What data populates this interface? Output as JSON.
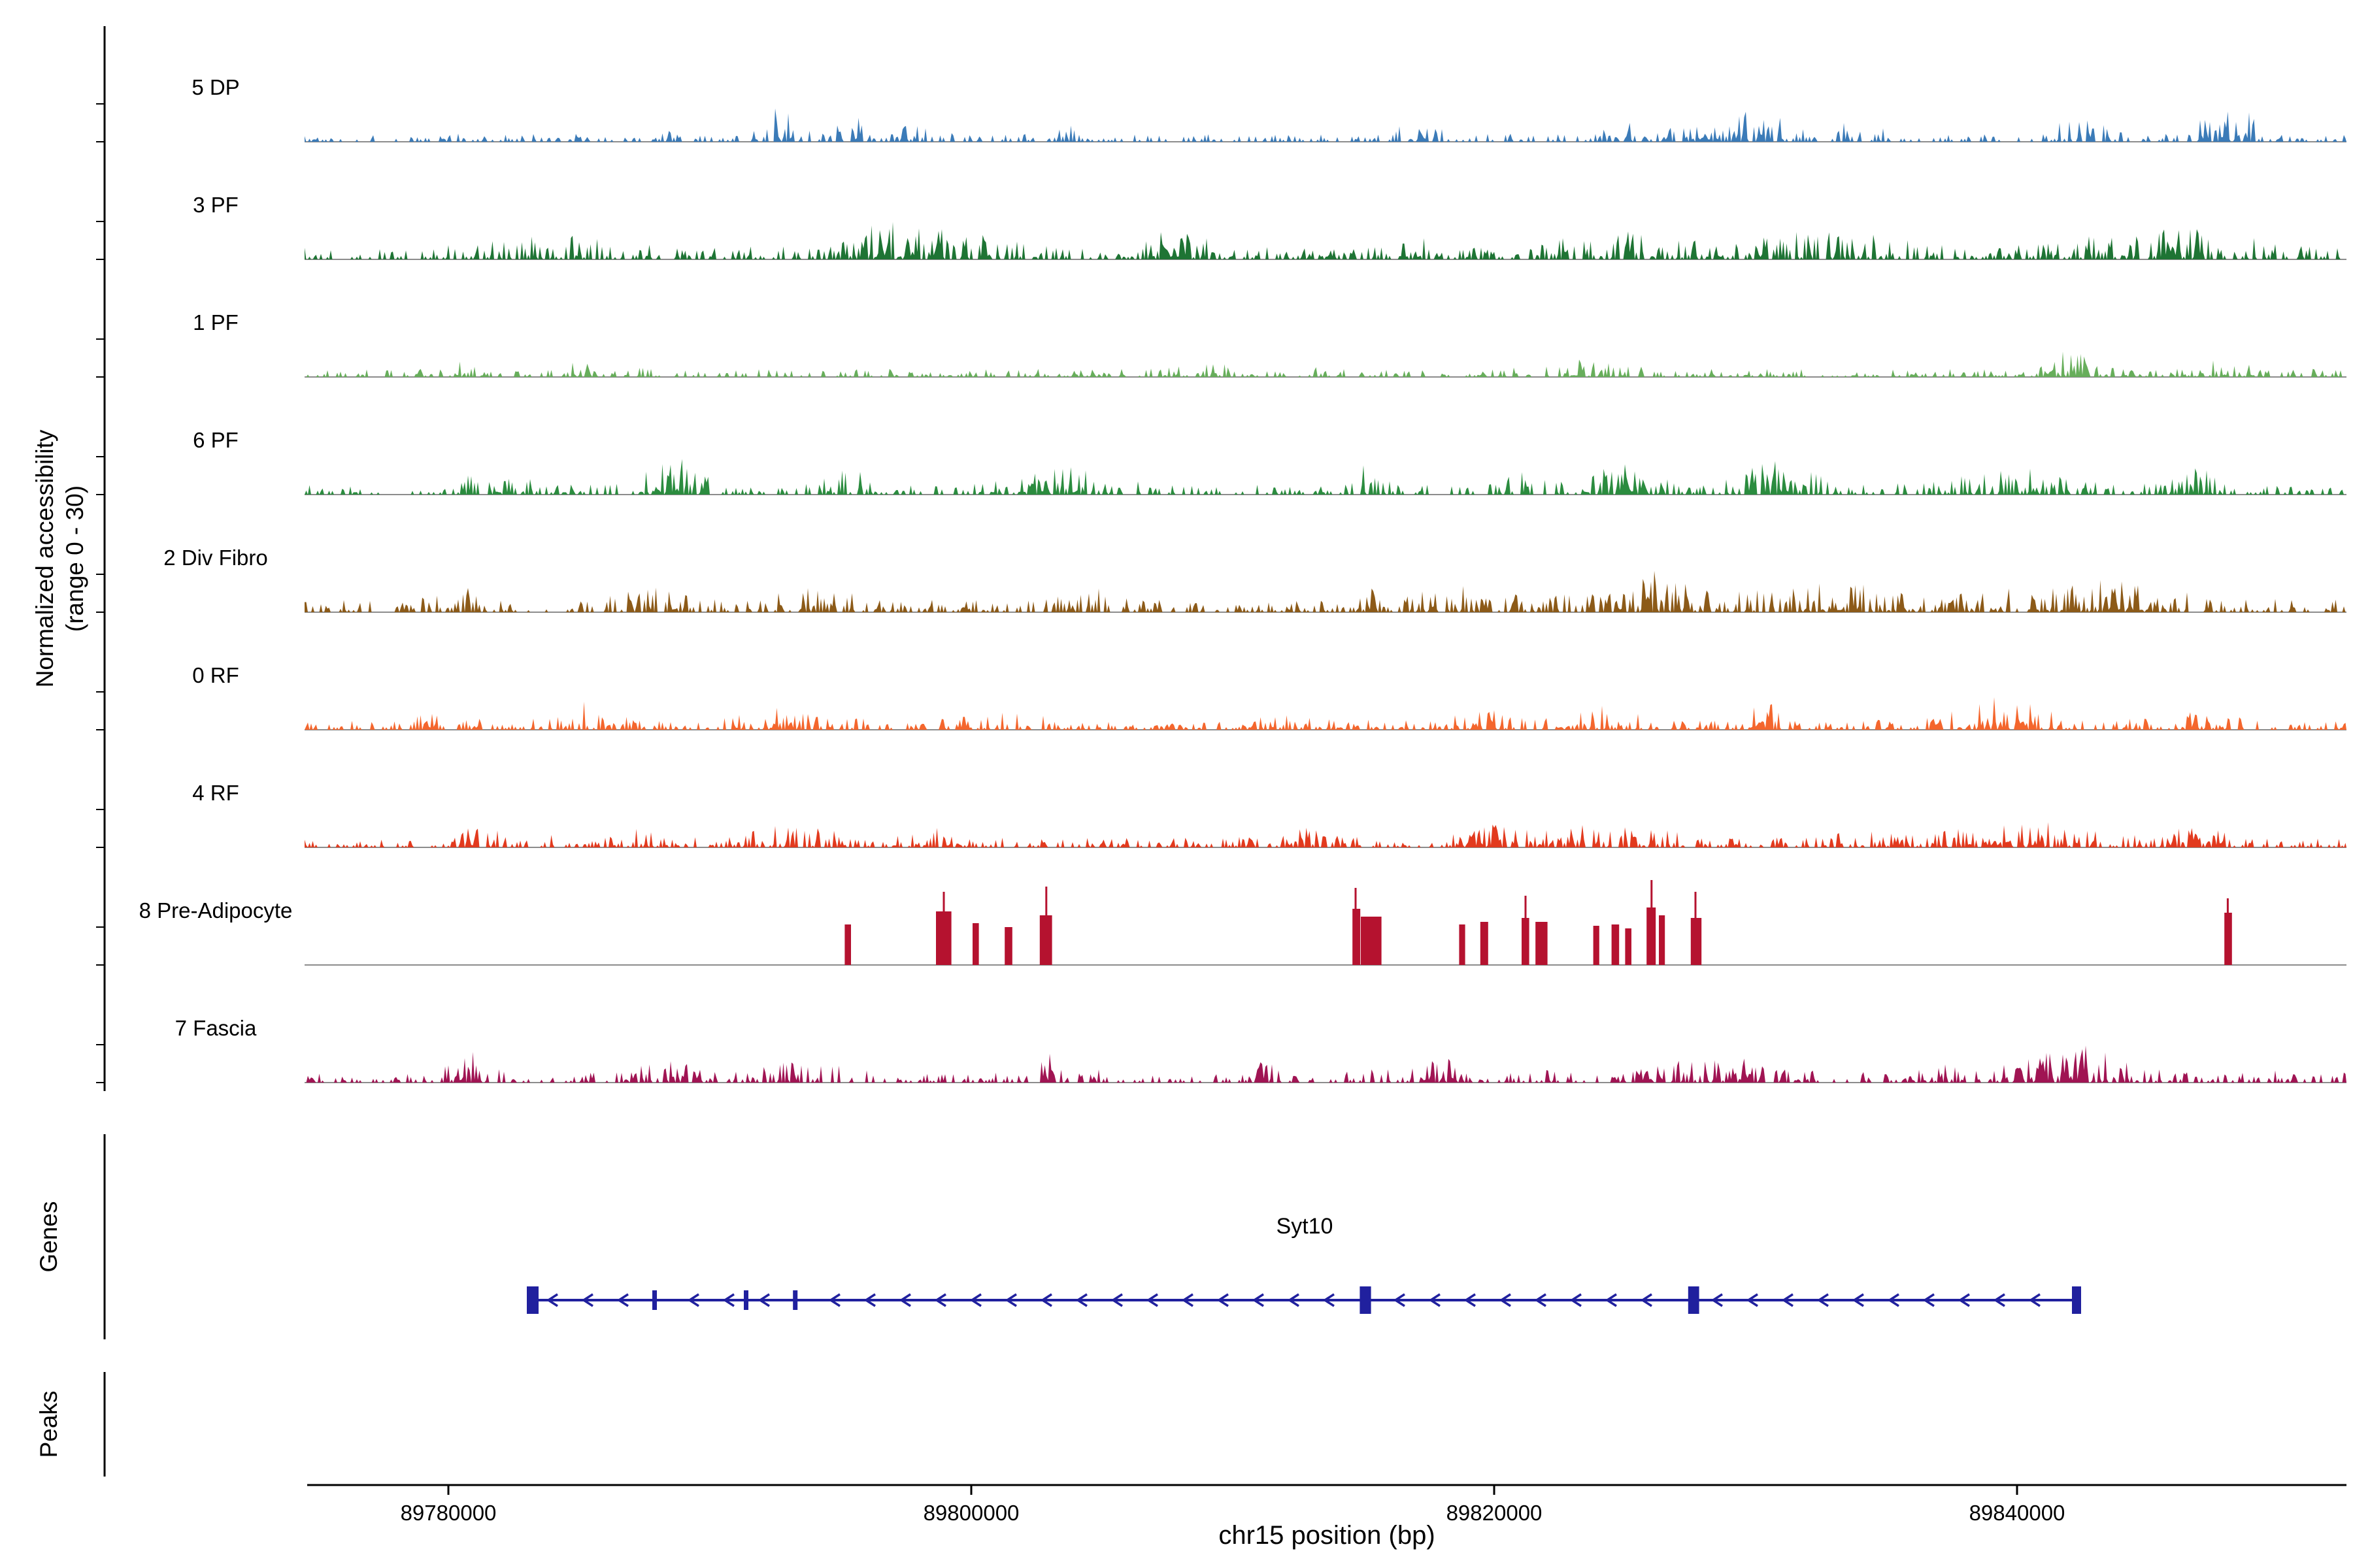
{
  "chart_data": {
    "type": "area",
    "title": "",
    "xlabel": "chr15 position (bp)",
    "ylabel_line1": "Normalized accessibility",
    "ylabel_line2": "(range 0 - 30)",
    "value_range": [
      0,
      30
    ],
    "region": {
      "chrom": "chr15",
      "start": 89774500,
      "end": 89852600
    },
    "x_ticks": [
      {
        "bp": 89780000,
        "label": "89780000"
      },
      {
        "bp": 89800000,
        "label": "89800000"
      },
      {
        "bp": 89820000,
        "label": "89820000"
      },
      {
        "bp": 89840000,
        "label": "89840000"
      }
    ],
    "baseline_color": "#8C8C8C",
    "axis_color": "#000000",
    "tracks": [
      {
        "label": "5 DP",
        "color": "#3B7BB8",
        "kind": "signal",
        "seed": 101,
        "base": 0.2,
        "max_height": 55,
        "clusters": [
          [
            89787900,
            600,
            0.45
          ],
          [
            89792650,
            450,
            1.0
          ],
          [
            89795200,
            800,
            0.7
          ],
          [
            89797800,
            600,
            0.45
          ],
          [
            89803600,
            500,
            0.3
          ],
          [
            89817000,
            700,
            0.45
          ],
          [
            89824800,
            1200,
            0.55
          ],
          [
            89829900,
            1500,
            0.75
          ],
          [
            89833900,
            700,
            0.5
          ],
          [
            89842400,
            1200,
            0.45
          ],
          [
            89848200,
            800,
            1.0
          ]
        ]
      },
      {
        "label": "3 PF",
        "color": "#1E7434",
        "kind": "signal",
        "seed": 202,
        "base": 0.3,
        "max_height": 60,
        "clusters": [
          [
            89783800,
            2000,
            0.45
          ],
          [
            89797800,
            2200,
            0.85
          ],
          [
            89807700,
            1300,
            0.5
          ],
          [
            89817000,
            350,
            0.9
          ],
          [
            89824600,
            1800,
            0.5
          ],
          [
            89832800,
            2200,
            0.55
          ],
          [
            89845600,
            2800,
            0.6
          ]
        ]
      },
      {
        "label": "1 PF",
        "color": "#67AE5B",
        "kind": "signal",
        "seed": 303,
        "base": 0.32,
        "max_height": 38,
        "clusters": [
          [
            89780300,
            700,
            0.4
          ],
          [
            89785500,
            900,
            0.45
          ],
          [
            89809400,
            1000,
            0.35
          ],
          [
            89823500,
            1500,
            0.45
          ],
          [
            89842100,
            600,
            1.0
          ],
          [
            89847900,
            900,
            0.5
          ]
        ]
      },
      {
        "label": "6 PF",
        "color": "#2B8C3F",
        "kind": "signal",
        "seed": 404,
        "base": 0.24,
        "max_height": 58,
        "clusters": [
          [
            89781500,
            900,
            0.5
          ],
          [
            89788600,
            800,
            1.0
          ],
          [
            89795200,
            700,
            0.6
          ],
          [
            89803600,
            1500,
            0.55
          ],
          [
            89815300,
            400,
            0.5
          ],
          [
            89821100,
            500,
            0.5
          ],
          [
            89825000,
            1300,
            0.65
          ],
          [
            89830800,
            1300,
            0.9
          ],
          [
            89840000,
            2000,
            0.55
          ],
          [
            89846800,
            700,
            0.55
          ]
        ]
      },
      {
        "label": "2 Div Fibro",
        "color": "#8C5A18",
        "kind": "signal",
        "seed": 505,
        "base": 0.34,
        "max_height": 55,
        "clusters": [
          [
            89780300,
            700,
            0.5
          ],
          [
            89787500,
            1100,
            0.55
          ],
          [
            89794000,
            1100,
            0.55
          ],
          [
            89804200,
            900,
            0.5
          ],
          [
            89815300,
            500,
            0.6
          ],
          [
            89818800,
            1300,
            0.55
          ],
          [
            89826000,
            2000,
            0.85
          ],
          [
            89832800,
            1800,
            0.65
          ],
          [
            89842500,
            2800,
            0.75
          ]
        ]
      },
      {
        "label": "0 RF",
        "color": "#F4662D",
        "kind": "signal",
        "seed": 606,
        "base": 0.3,
        "max_height": 50,
        "clusters": [
          [
            89779700,
            700,
            0.4
          ],
          [
            89786000,
            1300,
            0.45
          ],
          [
            89793000,
            1300,
            0.5
          ],
          [
            89801500,
            1300,
            0.45
          ],
          [
            89812000,
            800,
            0.35
          ],
          [
            89819300,
            800,
            0.5
          ],
          [
            89824000,
            1300,
            0.5
          ],
          [
            89830400,
            450,
            0.9
          ],
          [
            89839500,
            1300,
            0.85
          ],
          [
            89846500,
            1100,
            0.55
          ]
        ]
      },
      {
        "label": "4 RF",
        "color": "#E23A1E",
        "kind": "signal",
        "seed": 707,
        "base": 0.3,
        "max_height": 48,
        "clusters": [
          [
            89781000,
            1100,
            0.5
          ],
          [
            89787000,
            800,
            0.4
          ],
          [
            89793000,
            1500,
            0.5
          ],
          [
            89798300,
            600,
            0.5
          ],
          [
            89812500,
            1100,
            0.45
          ],
          [
            89820000,
            1000,
            0.45
          ],
          [
            89824500,
            2000,
            0.55
          ],
          [
            89834000,
            800,
            0.4
          ],
          [
            89840500,
            2500,
            0.6
          ],
          [
            89847000,
            800,
            0.5
          ]
        ]
      },
      {
        "label": "8 Pre-Adipocyte",
        "color": "#B5122F",
        "kind": "blocks",
        "seed": 808,
        "base": 0.0,
        "max_height": 130,
        "clusters": [],
        "blocks": [
          [
            89795160,
            89795400,
            62
          ],
          [
            89798650,
            89799240,
            82
          ],
          [
            89800050,
            89800290,
            64
          ],
          [
            89801280,
            89801570,
            58
          ],
          [
            89802620,
            89803090,
            76
          ],
          [
            89814580,
            89814880,
            86
          ],
          [
            89814900,
            89815690,
            74
          ],
          [
            89818660,
            89818890,
            62
          ],
          [
            89819470,
            89819770,
            66
          ],
          [
            89821050,
            89821340,
            72
          ],
          [
            89821580,
            89822040,
            66
          ],
          [
            89823790,
            89824020,
            60
          ],
          [
            89824490,
            89824780,
            62
          ],
          [
            89825010,
            89825250,
            56
          ],
          [
            89825830,
            89826180,
            88
          ],
          [
            89826300,
            89826530,
            76
          ],
          [
            89827520,
            89827930,
            72
          ],
          [
            89847930,
            89848220,
            80
          ]
        ],
        "spikes": [
          [
            89798950,
            112
          ],
          [
            89802870,
            120
          ],
          [
            89814700,
            118
          ],
          [
            89821200,
            106
          ],
          [
            89826020,
            130
          ],
          [
            89827700,
            112
          ],
          [
            89848060,
            102
          ]
        ]
      },
      {
        "label": "7 Fascia",
        "color": "#A01453",
        "kind": "signal",
        "seed": 909,
        "base": 0.26,
        "max_height": 55,
        "clusters": [
          [
            89780800,
            700,
            0.5
          ],
          [
            89788000,
            1200,
            0.45
          ],
          [
            89793500,
            1500,
            0.5
          ],
          [
            89803000,
            250,
            1.0
          ],
          [
            89811200,
            400,
            0.4
          ],
          [
            89818500,
            1800,
            0.55
          ],
          [
            89828500,
            2000,
            0.55
          ],
          [
            89836500,
            800,
            0.4
          ],
          [
            89842000,
            1800,
            1.05
          ]
        ]
      }
    ],
    "genes": {
      "section_label": "Genes",
      "items": [
        {
          "name": "Syt10",
          "strand": "-",
          "start": 89783000,
          "end": 89842450,
          "color": "#20209E",
          "exons": [
            [
              89783000,
              89783450,
              "big"
            ],
            [
              89787800,
              89787960,
              "small"
            ],
            [
              89791300,
              89791460,
              "small"
            ],
            [
              89793180,
              89793340,
              "small"
            ],
            [
              89814860,
              89815290,
              "big"
            ],
            [
              89827420,
              89827840,
              "big"
            ],
            [
              89842100,
              89842450,
              "big"
            ]
          ]
        }
      ]
    },
    "peaks": {
      "section_label": "Peaks",
      "items": []
    }
  }
}
